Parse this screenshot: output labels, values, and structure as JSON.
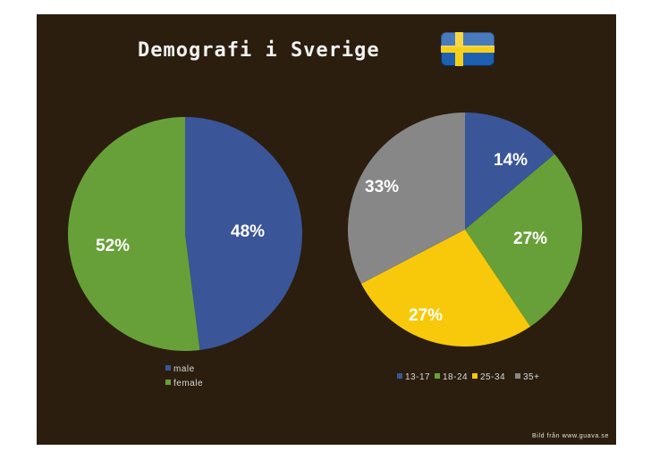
{
  "title": "Demografi i Sverige",
  "flag_icon": "sweden-flag-icon",
  "credit": "Bild från www.guava.se",
  "colors": {
    "background": "#2b1e0e"
  },
  "chart_data": [
    {
      "type": "pie",
      "categories": [
        "male",
        "female"
      ],
      "values": [
        48,
        52
      ],
      "labels": [
        "48%",
        "52%"
      ],
      "colors": [
        "#3a5598",
        "#67a038"
      ],
      "legend": "bottom-left"
    },
    {
      "type": "pie",
      "categories": [
        "13-17",
        "18-24",
        "25-34",
        "35+"
      ],
      "values": [
        14,
        27,
        27,
        33
      ],
      "labels": [
        "14%",
        "27%",
        "27%",
        "33%"
      ],
      "colors": [
        "#3a5598",
        "#67a038",
        "#f8c90a",
        "#878787"
      ],
      "legend": "bottom"
    }
  ]
}
